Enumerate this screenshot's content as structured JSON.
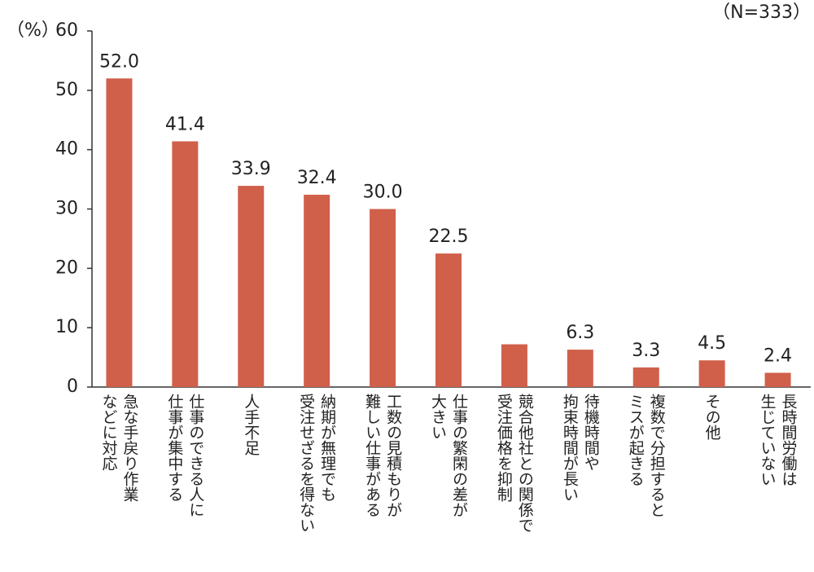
{
  "chart_data": {
    "type": "bar",
    "unit_label": "（%）",
    "sample_label": "（N=333）",
    "categories": [
      "急な手戻り作業\nなどに対応",
      "仕事のできる人に\n仕事が集中する",
      "人手不足",
      "納期が無理でも\n受注せざるを得ない",
      "工数の見積もりが\n難しい仕事がある",
      "仕事の繁閑の差が\n大きい",
      "競合他社との関係で\n受注価格を抑制",
      "待機時間や\n拘束時間が長い",
      "複数で分担すると\nミスが起きる",
      "その他",
      "長時間労働は\n生じていない"
    ],
    "values": [
      52.0,
      41.4,
      33.9,
      32.4,
      30.0,
      22.5,
      7.2,
      6.3,
      3.3,
      4.5,
      2.4
    ],
    "value_labels": [
      "52.0",
      "41.4",
      "33.9",
      "32.4",
      "30.0",
      "22.5",
      null,
      "6.3",
      "3.3",
      "4.5",
      "2.4"
    ],
    "color": "#d0604a",
    "ylim": [
      0,
      60
    ],
    "yticks": [
      0,
      10,
      20,
      30,
      40,
      50,
      60
    ]
  }
}
